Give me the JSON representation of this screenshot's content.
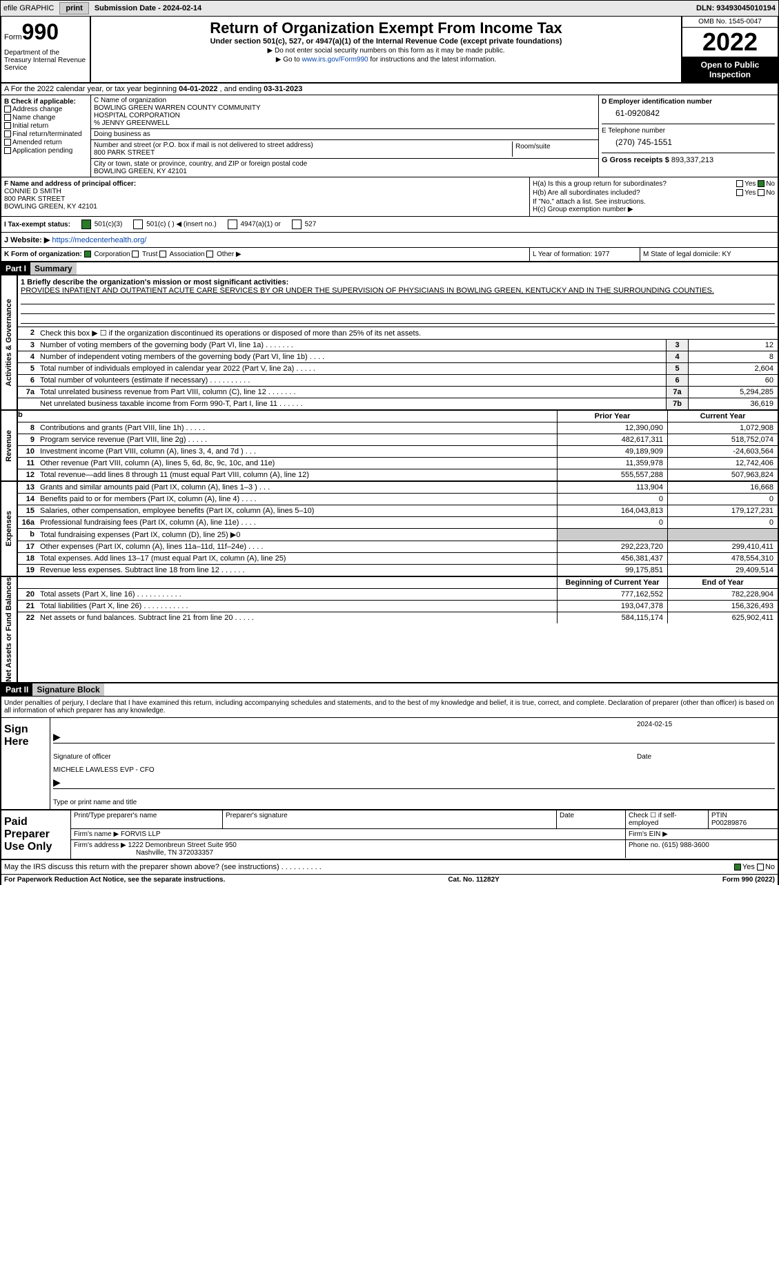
{
  "toolbar": {
    "efile": "efile GRAPHIC",
    "print": "print",
    "submission": "Submission Date - 2024-02-14",
    "dln": "DLN: 93493045010194"
  },
  "header": {
    "form": "Form",
    "form_num": "990",
    "dept": "Department of the Treasury Internal Revenue Service",
    "title": "Return of Organization Exempt From Income Tax",
    "subtitle": "Under section 501(c), 527, or 4947(a)(1) of the Internal Revenue Code (except private foundations)",
    "note1": "▶ Do not enter social security numbers on this form as it may be made public.",
    "note2_pre": "▶ Go to ",
    "note2_link": "www.irs.gov/Form990",
    "note2_post": " for instructions and the latest information.",
    "omb": "OMB No. 1545-0047",
    "year": "2022",
    "open": "Open to Public Inspection"
  },
  "row_a": {
    "pre": "A For the 2022 calendar year, or tax year beginning ",
    "begin": "04-01-2022",
    "mid": " , and ending ",
    "end": "03-31-2023"
  },
  "b": {
    "title": "B Check if applicable:",
    "opts": [
      "Address change",
      "Name change",
      "Initial return",
      "Final return/terminated",
      "Amended return",
      "Application pending"
    ]
  },
  "c": {
    "label": "C Name of organization",
    "name1": "BOWLING GREEN WARREN COUNTY COMMUNITY",
    "name2": "HOSPITAL CORPORATION",
    "care": "% JENNY GREENWELL",
    "dba": "Doing business as",
    "street_lbl": "Number and street (or P.O. box if mail is not delivered to street address)",
    "room_lbl": "Room/suite",
    "street": "800 PARK STREET",
    "city_lbl": "City or town, state or province, country, and ZIP or foreign postal code",
    "city": "BOWLING GREEN, KY  42101"
  },
  "d": {
    "ein_lbl": "D Employer identification number",
    "ein": "61-0920842",
    "tel_lbl": "E Telephone number",
    "tel": "(270) 745-1551",
    "gross_lbl": "G Gross receipts $",
    "gross": "893,337,213"
  },
  "f": {
    "lbl": "F Name and address of principal officer:",
    "name": "CONNIE D SMITH",
    "street": "800 PARK STREET",
    "city": "BOWLING GREEN, KY  42101"
  },
  "h": {
    "a": "H(a)  Is this a group return for subordinates?",
    "b": "H(b)  Are all subordinates included?",
    "note": "If \"No,\" attach a list. See instructions.",
    "c": "H(c)  Group exemption number ▶",
    "yes": "Yes",
    "no": "No"
  },
  "i": {
    "lbl": "I   Tax-exempt status:",
    "o1": "501(c)(3)",
    "o2": "501(c) (  ) ◀ (insert no.)",
    "o3": "4947(a)(1) or",
    "o4": "527"
  },
  "j": {
    "lbl": "J   Website: ▶",
    "url": "https://medcenterhealth.org/"
  },
  "klm": {
    "k": "K Form of organization:",
    "k_opts": [
      "Corporation",
      "Trust",
      "Association",
      "Other ▶"
    ],
    "l": "L Year of formation: 1977",
    "m": "M State of legal domicile: KY"
  },
  "part1": {
    "hdr": "Part I",
    "title": "Summary",
    "line1_lbl": "1  Briefly describe the organization's mission or most significant activities:",
    "mission": "PROVIDES INPATIENT AND OUTPATIENT ACUTE CARE SERVICES BY OR UNDER THE SUPERVISION OF PHYSICIANS IN BOWLING GREEN, KENTUCKY AND IN THE SURROUNDING COUNTIES.",
    "line2": "Check this box ▶ ☐  if the organization discontinued its operations or disposed of more than 25% of its net assets.",
    "vtab1": "Activities & Governance",
    "vtab2": "Revenue",
    "vtab3": "Expenses",
    "vtab4": "Net Assets or Fund Balances",
    "rows_gov": [
      {
        "n": "3",
        "d": "Number of voting members of the governing body (Part VI, line 1a)  .    .    .    .    .    .    .",
        "b": "3",
        "v": "12"
      },
      {
        "n": "4",
        "d": "Number of independent voting members of the governing body (Part VI, line 1b)   .    .    .    .",
        "b": "4",
        "v": "8"
      },
      {
        "n": "5",
        "d": "Total number of individuals employed in calendar year 2022 (Part V, line 2a)   .    .    .    .    .",
        "b": "5",
        "v": "2,604"
      },
      {
        "n": "6",
        "d": "Total number of volunteers (estimate if necessary)    .    .    .    .    .    .    .    .    .    .",
        "b": "6",
        "v": "60"
      },
      {
        "n": "7a",
        "d": "Total unrelated business revenue from Part VIII, column (C), line 12   .    .    .    .    .    .    .",
        "b": "7a",
        "v": "5,294,285"
      },
      {
        "n": "",
        "d": "Net unrelated business taxable income from Form 990-T, Part I, line 11   .    .    .    .    .    .",
        "b": "7b",
        "v": "36,619"
      }
    ],
    "hdr_prior": "Prior Year",
    "hdr_current": "Current Year",
    "rows_rev": [
      {
        "n": "8",
        "d": "Contributions and grants (Part VIII, line 1h)   .    .    .    .    .",
        "p": "12,390,090",
        "c": "1,072,908"
      },
      {
        "n": "9",
        "d": "Program service revenue (Part VIII, line 2g)   .    .    .    .    .",
        "p": "482,617,311",
        "c": "518,752,074"
      },
      {
        "n": "10",
        "d": "Investment income (Part VIII, column (A), lines 3, 4, and 7d )   .    .    .",
        "p": "49,189,909",
        "c": "-24,603,564"
      },
      {
        "n": "11",
        "d": "Other revenue (Part VIII, column (A), lines 5, 6d, 8c, 9c, 10c, and 11e)",
        "p": "11,359,978",
        "c": "12,742,406"
      },
      {
        "n": "12",
        "d": "Total revenue—add lines 8 through 11 (must equal Part VIII, column (A), line 12)",
        "p": "555,557,288",
        "c": "507,963,824"
      }
    ],
    "rows_exp": [
      {
        "n": "13",
        "d": "Grants and similar amounts paid (Part IX, column (A), lines 1–3 )   .    .    .",
        "p": "113,904",
        "c": "16,668"
      },
      {
        "n": "14",
        "d": "Benefits paid to or for members (Part IX, column (A), line 4)   .    .    .    .",
        "p": "0",
        "c": "0"
      },
      {
        "n": "15",
        "d": "Salaries, other compensation, employee benefits (Part IX, column (A), lines 5–10)",
        "p": "164,043,813",
        "c": "179,127,231"
      },
      {
        "n": "16a",
        "d": "Professional fundraising fees (Part IX, column (A), line 11e)   .    .    .    .",
        "p": "0",
        "c": "0"
      },
      {
        "n": "b",
        "d": "Total fundraising expenses (Part IX, column (D), line 25) ▶0",
        "p": "",
        "c": "",
        "shade": true
      },
      {
        "n": "17",
        "d": "Other expenses (Part IX, column (A), lines 11a–11d, 11f–24e)   .    .    .    .",
        "p": "292,223,720",
        "c": "299,410,411"
      },
      {
        "n": "18",
        "d": "Total expenses. Add lines 13–17 (must equal Part IX, column (A), line 25)",
        "p": "456,381,437",
        "c": "478,554,310"
      },
      {
        "n": "19",
        "d": "Revenue less expenses. Subtract line 18 from line 12   .    .    .    .    .    .",
        "p": "99,175,851",
        "c": "29,409,514"
      }
    ],
    "hdr_boy": "Beginning of Current Year",
    "hdr_eoy": "End of Year",
    "rows_net": [
      {
        "n": "20",
        "d": "Total assets (Part X, line 16)   .    .    .    .    .    .    .    .    .    .    .",
        "p": "777,162,552",
        "c": "782,228,904"
      },
      {
        "n": "21",
        "d": "Total liabilities (Part X, line 26)   .    .    .    .    .    .    .    .    .    .    .",
        "p": "193,047,378",
        "c": "156,326,493"
      },
      {
        "n": "22",
        "d": "Net assets or fund balances. Subtract line 21 from line 20   .    .    .    .    .",
        "p": "584,115,174",
        "c": "625,902,411"
      }
    ]
  },
  "part2": {
    "hdr": "Part II",
    "title": "Signature Block",
    "decl": "Under penalties of perjury, I declare that I have examined this return, including accompanying schedules and statements, and to the best of my knowledge and belief, it is true, correct, and complete. Declaration of preparer (other than officer) is based on all information of which preparer has any knowledge.",
    "sign_here": "Sign Here",
    "sig_officer": "Signature of officer",
    "sig_date": "2024-02-15",
    "date_lbl": "Date",
    "name_title": "MICHELE LAWLESS EVP - CFO",
    "name_title_lbl": "Type or print name and title"
  },
  "prep": {
    "lbl": "Paid Preparer Use Only",
    "h1": "Print/Type preparer's name",
    "h2": "Preparer's signature",
    "h3": "Date",
    "h4_pre": "Check ☐ if self-employed",
    "h5": "PTIN",
    "ptin": "P00289876",
    "firm_lbl": "Firm's name    ▶",
    "firm": "FORVIS LLP",
    "ein_lbl": "Firm's EIN ▶",
    "addr_lbl": "Firm's address ▶",
    "addr1": "1222 Demonbreun Street Suite 950",
    "addr2": "Nashville, TN  372033357",
    "phone_lbl": "Phone no.",
    "phone": "(615) 988-3600"
  },
  "footer": {
    "q": "May the IRS discuss this return with the preparer shown above? (see instructions)   .    .    .    .    .    .    .    .    .    .",
    "yes": "Yes",
    "no": "No",
    "pra": "For Paperwork Reduction Act Notice, see the separate instructions.",
    "cat": "Cat. No. 11282Y",
    "form": "Form 990 (2022)"
  }
}
